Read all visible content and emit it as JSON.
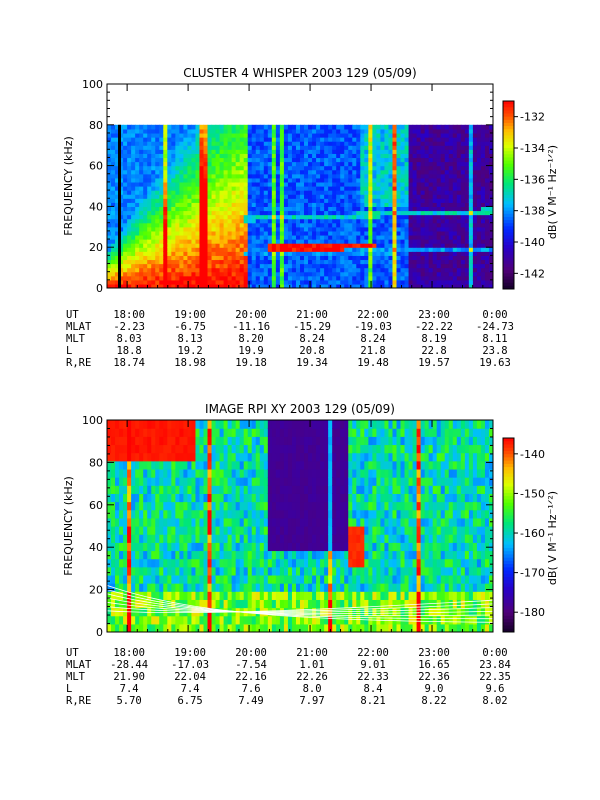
{
  "chart_data": [
    {
      "type": "heatmap",
      "title": "CLUSTER 4 WHISPER 2003 129 (05/09)",
      "ylabel": "FREQUENCY (kHz)",
      "colorbar_label": "dB( V M⁻¹ Hz⁻¹ᐟ²)",
      "ylim": [
        0,
        100
      ],
      "yticks": [
        "0",
        "20",
        "40",
        "60",
        "80",
        "100"
      ],
      "data_extent_khz": [
        0,
        80
      ],
      "colorbar_range": [
        -143,
        -131
      ],
      "colorbar_ticks": [
        "-132",
        "-134",
        "-136",
        "-138",
        "-140",
        "-142"
      ],
      "x_range_ut_hours": [
        17.67,
        24.0
      ],
      "annotation_rows": [
        {
          "label": "UT",
          "values": [
            "18:00",
            "19:00",
            "20:00",
            "21:00",
            "22:00",
            "23:00",
            "0:00"
          ]
        },
        {
          "label": "MLAT",
          "values": [
            "-2.23",
            "-6.75",
            "-11.16",
            "-15.29",
            "-19.03",
            "-22.22",
            "-24.73"
          ]
        },
        {
          "label": "MLT",
          "values": [
            "8.03",
            "8.13",
            "8.20",
            "8.24",
            "8.24",
            "8.19",
            "8.11"
          ]
        },
        {
          "label": "L",
          "values": [
            "18.8",
            "19.2",
            "19.9",
            "20.8",
            "21.8",
            "22.8",
            "23.8"
          ]
        },
        {
          "label": "R,RE",
          "values": [
            "18.74",
            "18.98",
            "19.18",
            "19.34",
            "19.48",
            "19.57",
            "19.63"
          ]
        }
      ],
      "features": [
        {
          "kind": "intense_band",
          "ut_start": 20.3,
          "ut_end": 22.1,
          "freq_khz": [
            16,
            22
          ],
          "level_db": -131
        },
        {
          "kind": "emission_line",
          "ut_start": 19.9,
          "ut_end": 24.0,
          "freq_start_khz": 34,
          "freq_end_khz": 38,
          "level_db": -137
        },
        {
          "kind": "emission_line",
          "ut_start": 19.9,
          "ut_end": 24.0,
          "freq_start_khz": 17,
          "freq_end_khz": 19,
          "level_db": -138
        }
      ]
    },
    {
      "type": "heatmap",
      "title": "IMAGE RPI XY 2003 129 (05/09)",
      "ylabel": "FREQUENCY (kHz)",
      "colorbar_label": "dB( V M⁻¹ Hz⁻¹ᐟ²)",
      "ylim": [
        0,
        100
      ],
      "yticks": [
        "0",
        "20",
        "40",
        "60",
        "80",
        "100"
      ],
      "colorbar_range": [
        -185,
        -136
      ],
      "colorbar_ticks": [
        "-140",
        "-150",
        "-160",
        "-170",
        "-180"
      ],
      "x_range_ut_hours": [
        17.67,
        24.0
      ],
      "annotation_rows": [
        {
          "label": "UT",
          "values": [
            "18:00",
            "19:00",
            "20:00",
            "21:00",
            "22:00",
            "23:00",
            "0:00"
          ]
        },
        {
          "label": "MLAT",
          "values": [
            "-28.44",
            "-17.03",
            "-7.54",
            "1.01",
            "9.01",
            "16.65",
            "23.84"
          ]
        },
        {
          "label": "MLT",
          "values": [
            "21.90",
            "22.04",
            "22.16",
            "22.26",
            "22.33",
            "22.36",
            "22.35"
          ]
        },
        {
          "label": "L",
          "values": [
            "7.4",
            "7.4",
            "7.6",
            "8.0",
            "8.4",
            "9.0",
            "9.6"
          ]
        },
        {
          "label": "R,RE",
          "values": [
            "5.70",
            "6.75",
            "7.49",
            "7.97",
            "8.21",
            "8.22",
            "8.02"
          ]
        }
      ],
      "features": [
        {
          "kind": "intense_patch",
          "ut_start": 17.7,
          "ut_end": 19.1,
          "freq_khz": [
            80,
            100
          ],
          "level_db": -137
        },
        {
          "kind": "intense_patch",
          "ut_start": 21.6,
          "ut_end": 21.9,
          "freq_khz": [
            30,
            50
          ],
          "level_db": -138
        },
        {
          "kind": "quiet_region",
          "ut_start": 20.3,
          "ut_end": 21.6,
          "freq_khz": [
            40,
            100
          ],
          "level_db": -178
        }
      ]
    }
  ]
}
